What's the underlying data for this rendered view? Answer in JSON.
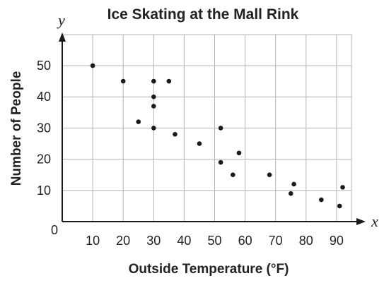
{
  "chart_data": {
    "type": "scatter",
    "title": "Ice Skating at the Mall Rink",
    "xlabel": "Outside Temperature (°F)",
    "ylabel": "Number of People",
    "x_axis_var": "x",
    "y_axis_var": "y",
    "origin_label": "0",
    "xlim": [
      0,
      100
    ],
    "ylim": [
      0,
      60
    ],
    "x_ticks": [
      10,
      20,
      30,
      40,
      50,
      60,
      70,
      80,
      90
    ],
    "y_ticks": [
      10,
      20,
      30,
      40,
      50
    ],
    "grid": true,
    "point_color": "#1a1a1a",
    "grid_color": "#b3b3b3",
    "axis_color": "#1a1a1a",
    "points": [
      {
        "x": 10,
        "y": 50
      },
      {
        "x": 20,
        "y": 45
      },
      {
        "x": 30,
        "y": 45
      },
      {
        "x": 35,
        "y": 45
      },
      {
        "x": 30,
        "y": 40
      },
      {
        "x": 30,
        "y": 37
      },
      {
        "x": 25,
        "y": 32
      },
      {
        "x": 30,
        "y": 30
      },
      {
        "x": 37,
        "y": 28
      },
      {
        "x": 45,
        "y": 25
      },
      {
        "x": 52,
        "y": 30
      },
      {
        "x": 58,
        "y": 22
      },
      {
        "x": 52,
        "y": 19
      },
      {
        "x": 56,
        "y": 15
      },
      {
        "x": 68,
        "y": 15
      },
      {
        "x": 76,
        "y": 12
      },
      {
        "x": 75,
        "y": 9
      },
      {
        "x": 85,
        "y": 7
      },
      {
        "x": 92,
        "y": 11
      },
      {
        "x": 91,
        "y": 5
      }
    ]
  }
}
